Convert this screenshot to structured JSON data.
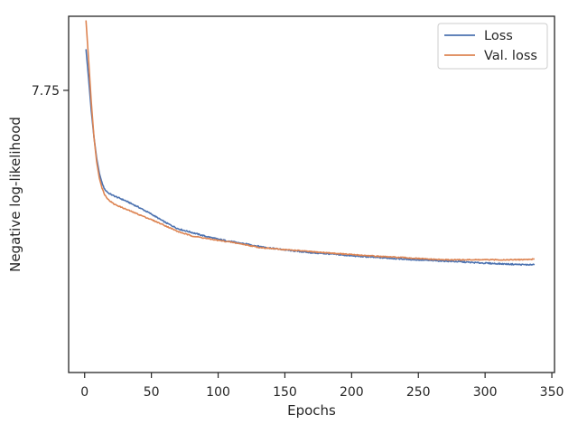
{
  "chart_data": {
    "type": "line",
    "title": "",
    "xlabel": "Epochs",
    "ylabel": "Negative log-likelihood",
    "xlim": [
      -12,
      352
    ],
    "ylim": [
      7.5215,
      7.81
    ],
    "xticks": [
      0,
      50,
      100,
      150,
      200,
      250,
      300,
      350
    ],
    "yticks": [
      7.75
    ],
    "ytick_labels": [
      "7.75"
    ],
    "grid": false,
    "legend": "top-right",
    "series": [
      {
        "name": "Loss",
        "color": "#4c72b0",
        "points": [
          [
            1,
            7.7833
          ],
          [
            3,
            7.759
          ],
          [
            5,
            7.733
          ],
          [
            7,
            7.712
          ],
          [
            9,
            7.695
          ],
          [
            11,
            7.683
          ],
          [
            13,
            7.675
          ],
          [
            15,
            7.6698
          ],
          [
            18,
            7.6667
          ],
          [
            22,
            7.6645
          ],
          [
            30,
            7.6609
          ],
          [
            40,
            7.6556
          ],
          [
            50,
            7.6498
          ],
          [
            60,
            7.6433
          ],
          [
            70,
            7.6379
          ],
          [
            80,
            7.635
          ],
          [
            90,
            7.632
          ],
          [
            100,
            7.6295
          ],
          [
            110,
            7.6275
          ],
          [
            120,
            7.6257
          ],
          [
            130,
            7.6238
          ],
          [
            140,
            7.6222
          ],
          [
            150,
            7.6208
          ],
          [
            160,
            7.6196
          ],
          [
            170,
            7.6185
          ],
          [
            180,
            7.6178
          ],
          [
            190,
            7.617
          ],
          [
            200,
            7.616
          ],
          [
            210,
            7.6153
          ],
          [
            220,
            7.6146
          ],
          [
            230,
            7.614
          ],
          [
            240,
            7.6133
          ],
          [
            250,
            7.6127
          ],
          [
            260,
            7.6122
          ],
          [
            270,
            7.6118
          ],
          [
            280,
            7.6113
          ],
          [
            290,
            7.6106
          ],
          [
            300,
            7.6101
          ],
          [
            310,
            7.6096
          ],
          [
            320,
            7.6092
          ],
          [
            330,
            7.6088
          ],
          [
            337,
            7.6088
          ]
        ]
      },
      {
        "name": "Val. loss",
        "color": "#dd8452",
        "points": [
          [
            1,
            7.8067
          ],
          [
            3,
            7.774
          ],
          [
            5,
            7.74
          ],
          [
            7,
            7.712
          ],
          [
            9,
            7.692
          ],
          [
            11,
            7.679
          ],
          [
            13,
            7.671
          ],
          [
            15,
            7.6655
          ],
          [
            18,
            7.6612
          ],
          [
            22,
            7.6579
          ],
          [
            30,
            7.6542
          ],
          [
            40,
            7.6497
          ],
          [
            50,
            7.6453
          ],
          [
            60,
            7.6406
          ],
          [
            70,
            7.6356
          ],
          [
            80,
            7.6322
          ],
          [
            90,
            7.6303
          ],
          [
            100,
            7.6285
          ],
          [
            110,
            7.627
          ],
          [
            120,
            7.6251
          ],
          [
            130,
            7.6229
          ],
          [
            140,
            7.6219
          ],
          [
            150,
            7.621
          ],
          [
            160,
            7.6203
          ],
          [
            170,
            7.6193
          ],
          [
            180,
            7.6186
          ],
          [
            190,
            7.6178
          ],
          [
            200,
            7.617
          ],
          [
            210,
            7.6163
          ],
          [
            220,
            7.6156
          ],
          [
            230,
            7.615
          ],
          [
            240,
            7.6145
          ],
          [
            250,
            7.6138
          ],
          [
            260,
            7.6132
          ],
          [
            270,
            7.6128
          ],
          [
            280,
            7.6128
          ],
          [
            290,
            7.6128
          ],
          [
            300,
            7.6128
          ],
          [
            310,
            7.6128
          ],
          [
            320,
            7.6128
          ],
          [
            330,
            7.613
          ],
          [
            337,
            7.6133
          ]
        ]
      }
    ]
  }
}
